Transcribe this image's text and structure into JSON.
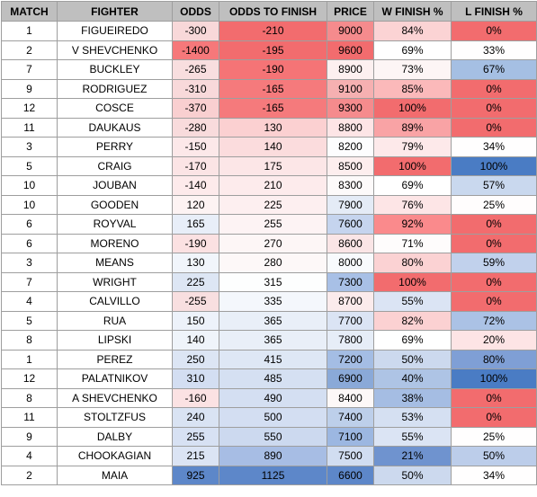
{
  "columns": [
    "MATCH",
    "FIGHTER",
    "ODDS",
    "ODDS TO FINISH",
    "PRICE",
    "W FINISH %",
    "L FINISH %"
  ],
  "rows": [
    {
      "match": "1",
      "fighter": "FIGUEIREDO",
      "odds": "-300",
      "odds_to_finish": "-210",
      "price": "9000",
      "w_finish": "84%",
      "l_finish": "0%"
    },
    {
      "match": "2",
      "fighter": "V SHEVCHENKO",
      "odds": "-1400",
      "odds_to_finish": "-195",
      "price": "9600",
      "w_finish": "69%",
      "l_finish": "33%"
    },
    {
      "match": "7",
      "fighter": "BUCKLEY",
      "odds": "-265",
      "odds_to_finish": "-190",
      "price": "8900",
      "w_finish": "73%",
      "l_finish": "67%"
    },
    {
      "match": "9",
      "fighter": "RODRIGUEZ",
      "odds": "-310",
      "odds_to_finish": "-165",
      "price": "9100",
      "w_finish": "85%",
      "l_finish": "0%"
    },
    {
      "match": "12",
      "fighter": "COSCE",
      "odds": "-370",
      "odds_to_finish": "-165",
      "price": "9300",
      "w_finish": "100%",
      "l_finish": "0%"
    },
    {
      "match": "11",
      "fighter": "DAUKAUS",
      "odds": "-280",
      "odds_to_finish": "130",
      "price": "8800",
      "w_finish": "89%",
      "l_finish": "0%"
    },
    {
      "match": "3",
      "fighter": "PERRY",
      "odds": "-150",
      "odds_to_finish": "140",
      "price": "8200",
      "w_finish": "79%",
      "l_finish": "34%"
    },
    {
      "match": "5",
      "fighter": "CRAIG",
      "odds": "-170",
      "odds_to_finish": "175",
      "price": "8500",
      "w_finish": "100%",
      "l_finish": "100%"
    },
    {
      "match": "10",
      "fighter": "JOUBAN",
      "odds": "-140",
      "odds_to_finish": "210",
      "price": "8300",
      "w_finish": "69%",
      "l_finish": "57%"
    },
    {
      "match": "10",
      "fighter": "GOODEN",
      "odds": "120",
      "odds_to_finish": "225",
      "price": "7900",
      "w_finish": "76%",
      "l_finish": "25%"
    },
    {
      "match": "6",
      "fighter": "ROYVAL",
      "odds": "165",
      "odds_to_finish": "255",
      "price": "7600",
      "w_finish": "92%",
      "l_finish": "0%"
    },
    {
      "match": "6",
      "fighter": "MORENO",
      "odds": "-190",
      "odds_to_finish": "270",
      "price": "8600",
      "w_finish": "71%",
      "l_finish": "0%"
    },
    {
      "match": "3",
      "fighter": "MEANS",
      "odds": "130",
      "odds_to_finish": "280",
      "price": "8000",
      "w_finish": "80%",
      "l_finish": "59%"
    },
    {
      "match": "7",
      "fighter": "WRIGHT",
      "odds": "225",
      "odds_to_finish": "315",
      "price": "7300",
      "w_finish": "100%",
      "l_finish": "0%"
    },
    {
      "match": "4",
      "fighter": "CALVILLO",
      "odds": "-255",
      "odds_to_finish": "335",
      "price": "8700",
      "w_finish": "55%",
      "l_finish": "0%"
    },
    {
      "match": "5",
      "fighter": "RUA",
      "odds": "150",
      "odds_to_finish": "365",
      "price": "7700",
      "w_finish": "82%",
      "l_finish": "72%"
    },
    {
      "match": "8",
      "fighter": "LIPSKI",
      "odds": "140",
      "odds_to_finish": "365",
      "price": "7800",
      "w_finish": "69%",
      "l_finish": "20%"
    },
    {
      "match": "1",
      "fighter": "PEREZ",
      "odds": "250",
      "odds_to_finish": "415",
      "price": "7200",
      "w_finish": "50%",
      "l_finish": "80%"
    },
    {
      "match": "12",
      "fighter": "PALATNIKOV",
      "odds": "310",
      "odds_to_finish": "485",
      "price": "6900",
      "w_finish": "40%",
      "l_finish": "100%"
    },
    {
      "match": "8",
      "fighter": "A SHEVCHENKO",
      "odds": "-160",
      "odds_to_finish": "490",
      "price": "8400",
      "w_finish": "38%",
      "l_finish": "0%"
    },
    {
      "match": "11",
      "fighter": "STOLTZFUS",
      "odds": "240",
      "odds_to_finish": "500",
      "price": "7400",
      "w_finish": "53%",
      "l_finish": "0%"
    },
    {
      "match": "9",
      "fighter": "DALBY",
      "odds": "255",
      "odds_to_finish": "550",
      "price": "7100",
      "w_finish": "55%",
      "l_finish": "25%"
    },
    {
      "match": "4",
      "fighter": "CHOOKAGIAN",
      "odds": "215",
      "odds_to_finish": "890",
      "price": "7500",
      "w_finish": "21%",
      "l_finish": "50%"
    },
    {
      "match": "2",
      "fighter": "MAIA",
      "odds": "925",
      "odds_to_finish": "1125",
      "price": "6600",
      "w_finish": "50%",
      "l_finish": "34%"
    }
  ],
  "cell_colors": [
    {
      "odds": "#f8d8d9",
      "odds_to_finish": "#f26c6e",
      "price": "#f58b8d",
      "w_finish": "#fbd3d4",
      "l_finish": "#f26c6e"
    },
    {
      "odds": "#f6787a",
      "odds_to_finish": "#f26c6e",
      "price": "#f26c6e",
      "w_finish": "#ffffff",
      "l_finish": "#fffefe"
    },
    {
      "odds": "#f8dedf",
      "odds_to_finish": "#f57476",
      "price": "#fdf0f0",
      "w_finish": "#fdf5f5",
      "l_finish": "#a5bfe3"
    },
    {
      "odds": "#f8d9da",
      "odds_to_finish": "#f57a7c",
      "price": "#f6b0b1",
      "w_finish": "#fbb9ba",
      "l_finish": "#f26c6e"
    },
    {
      "odds": "#f9cfd0",
      "odds_to_finish": "#f57a7c",
      "price": "#f58b8d",
      "w_finish": "#f26c6e",
      "l_finish": "#f26c6e"
    },
    {
      "odds": "#f8dbdc",
      "odds_to_finish": "#fbd0d1",
      "price": "#fde5e6",
      "w_finish": "#f9a3a5",
      "l_finish": "#f26c6e"
    },
    {
      "odds": "#fce8e9",
      "odds_to_finish": "#fbdcdd",
      "price": "#fdfdfe",
      "w_finish": "#fde9ea",
      "l_finish": "#fffefe"
    },
    {
      "odds": "#fbe4e5",
      "odds_to_finish": "#fce6e7",
      "price": "#fdeeee",
      "w_finish": "#f26c6e",
      "l_finish": "#4a7cc4"
    },
    {
      "odds": "#fdeaeb",
      "odds_to_finish": "#fdebec",
      "price": "#fdfafa",
      "w_finish": "#ffffff",
      "l_finish": "#c9d8ee"
    },
    {
      "odds": "#fdf3f3",
      "odds_to_finish": "#fdeff0",
      "price": "#e4ebf6",
      "w_finish": "#fde5e6",
      "l_finish": "#fffdfd"
    },
    {
      "odds": "#e8eef8",
      "odds_to_finish": "#fdf3f4",
      "price": "#c5d4ee",
      "w_finish": "#fa8a8c",
      "l_finish": "#f26c6e"
    },
    {
      "odds": "#fbe1e2",
      "odds_to_finish": "#fdf6f6",
      "price": "#fae5e6",
      "w_finish": "#fefcfc",
      "l_finish": "#f26c6e"
    },
    {
      "odds": "#f1f5fb",
      "odds_to_finish": "#fdf8f8",
      "price": "#f8fafd",
      "w_finish": "#fbd2d3",
      "l_finish": "#c1d1ec"
    },
    {
      "odds": "#dde6f4",
      "odds_to_finish": "#fdfefe",
      "price": "#a8c0e6",
      "w_finish": "#f26c6e",
      "l_finish": "#f26c6e"
    },
    {
      "odds": "#f8dfe0",
      "odds_to_finish": "#f4f7fc",
      "price": "#fbebec",
      "w_finish": "#dbe4f4",
      "l_finish": "#f26c6e"
    },
    {
      "odds": "#edf2fa",
      "odds_to_finish": "#e9eff8",
      "price": "#dbe4f4",
      "w_finish": "#fbd1d2",
      "l_finish": "#abc2e5"
    },
    {
      "odds": "#eff4fa",
      "odds_to_finish": "#e9eff8",
      "price": "#e6edf7",
      "w_finish": "#ffffff",
      "l_finish": "#fde4e5"
    },
    {
      "odds": "#dce5f4",
      "odds_to_finish": "#dee7f5",
      "price": "#a4bde4",
      "w_finish": "#ccd9ee",
      "l_finish": "#7f9fd5"
    },
    {
      "odds": "#d3def2",
      "odds_to_finish": "#d5e0f2",
      "price": "#8aa9d8",
      "w_finish": "#aec4e5",
      "l_finish": "#4a7cc4"
    },
    {
      "odds": "#fbe2e3",
      "odds_to_finish": "#d4dff2",
      "price": "#fdf8f8",
      "w_finish": "#a5bde3",
      "l_finish": "#f26c6e"
    },
    {
      "odds": "#d9e3f3",
      "odds_to_finish": "#d3def2",
      "price": "#bdcfea",
      "w_finish": "#d5e0f2",
      "l_finish": "#f26c6e"
    },
    {
      "odds": "#d7e1f3",
      "odds_to_finish": "#ccd9ef",
      "price": "#9cb7e1",
      "w_finish": "#dbe4f4",
      "l_finish": "#fffefe"
    },
    {
      "odds": "#dbe4f4",
      "odds_to_finish": "#a7bde4",
      "price": "#d1ddf1",
      "w_finish": "#6f93cf",
      "l_finish": "#bccdea"
    },
    {
      "odds": "#5d87c9",
      "odds_to_finish": "#5d87c9",
      "price": "#5d87c9",
      "w_finish": "#ccd9ee",
      "l_finish": "#fffefe"
    }
  ]
}
